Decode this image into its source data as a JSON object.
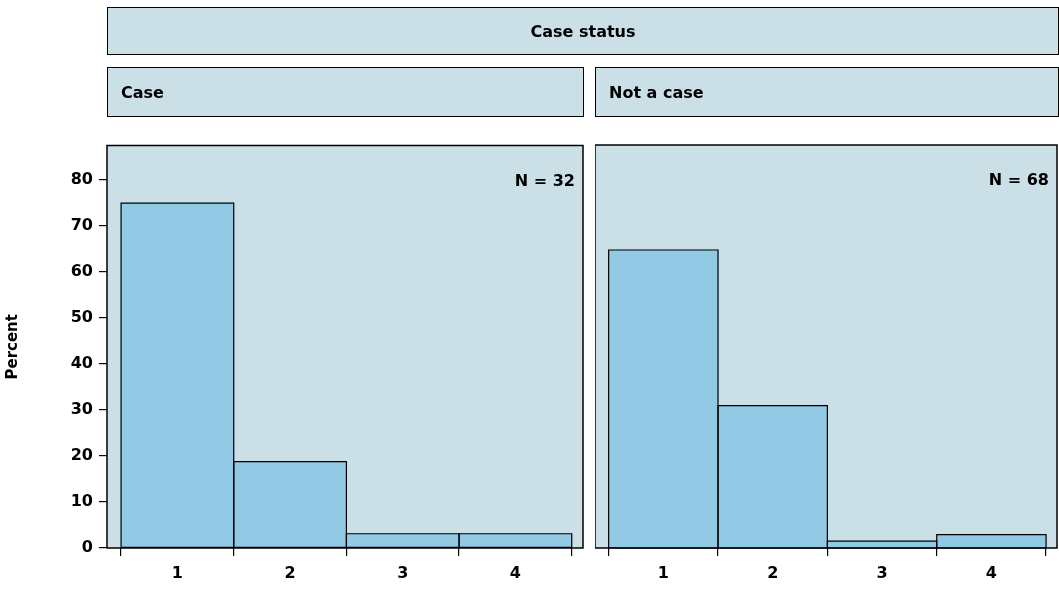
{
  "chart_data": [
    {
      "type": "bar",
      "title": "Case status",
      "subtitle": "Case",
      "ylabel": "Percent",
      "categories": [
        "1",
        "2",
        "3",
        "4"
      ],
      "values": [
        75,
        18.8,
        3.1,
        3.1
      ],
      "color": "#92c9e4",
      "ylim": [
        0,
        87.5
      ],
      "yticks": [
        0,
        10,
        20,
        30,
        40,
        50,
        60,
        70,
        80
      ],
      "annotations": [
        "N = 32"
      ]
    },
    {
      "type": "bar",
      "subtitle": "Not a case",
      "categories": [
        "1",
        "2",
        "3",
        "4"
      ],
      "values": [
        64.7,
        30.9,
        1.5,
        2.9
      ],
      "color": "#92c9e4",
      "ylim": [
        0,
        87.5
      ],
      "yticks": [
        0,
        10,
        20,
        30,
        40,
        50,
        60,
        70,
        80
      ],
      "annotations": [
        "N = 68"
      ],
      "tick_labels": "x"
    }
  ]
}
